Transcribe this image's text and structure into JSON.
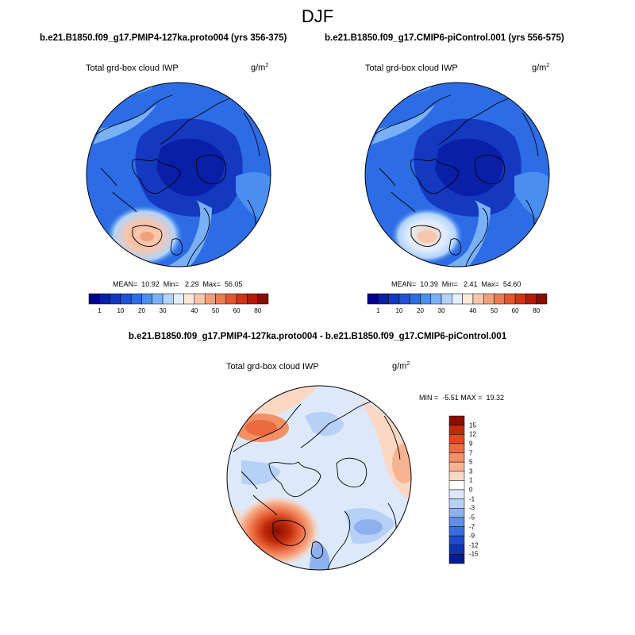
{
  "figure": {
    "title": "DJF"
  },
  "panels": [
    {
      "title": "b.e21.B1850.f09_g17.PMIP4-127ka.proto004 (yrs 356-375)",
      "variable": "Total grd-box cloud IWP",
      "units_base": "g/m",
      "units_exp": "2",
      "stats": "MEAN=  10.92  Min=   2.29  Max=  56.05"
    },
    {
      "title": "b.e21.B1850.f09_g17.CMIP6-piControl.001 (yrs 556-575)",
      "variable": "Total grd-box cloud IWP",
      "units_base": "g/m",
      "units_exp": "2",
      "stats": "MEAN=  10.39  Min=   2.41  Max=  54.60"
    },
    {
      "title": "b.e21.B1850.f09_g17.PMIP4-127ka.proto004 - b.e21.B1850.f09_g17.CMIP6-piControl.001",
      "variable": "Total grd-box cloud IWP",
      "units_base": "g/m",
      "units_exp": "2",
      "stats": "MIN =  -5.51 MAX =  19.32"
    }
  ],
  "abs_colorbar": {
    "labels": [
      "1",
      "10",
      "20",
      "30",
      "40",
      "50",
      "60",
      "80"
    ],
    "colors": [
      "#00008f",
      "#0a1fa8",
      "#1438c0",
      "#1f52d6",
      "#2c6de6",
      "#4a8ff0",
      "#7ab0f6",
      "#b3d3fa",
      "#e2eefc",
      "#fde7d9",
      "#f8c6ac",
      "#f2a07c",
      "#ec7a52",
      "#e4542e",
      "#d23314",
      "#b51a05",
      "#8a0d00"
    ]
  },
  "diff_colorbar": {
    "labels": [
      "15",
      "12",
      "9",
      "7",
      "5",
      "3",
      "1",
      "0",
      "-1",
      "-3",
      "-5",
      "-7",
      "-9",
      "-12",
      "-15"
    ],
    "colors": [
      "#8a0d00",
      "#c02a0a",
      "#e0481f",
      "#ec6a40",
      "#f39066",
      "#f6b391",
      "#fbd8c4",
      "#ffffff",
      "#dce9fb",
      "#b7d0f6",
      "#8eb1ee",
      "#5f8ee6",
      "#3a6ddc",
      "#1f4ccb",
      "#1033b0",
      "#001c93"
    ]
  }
}
